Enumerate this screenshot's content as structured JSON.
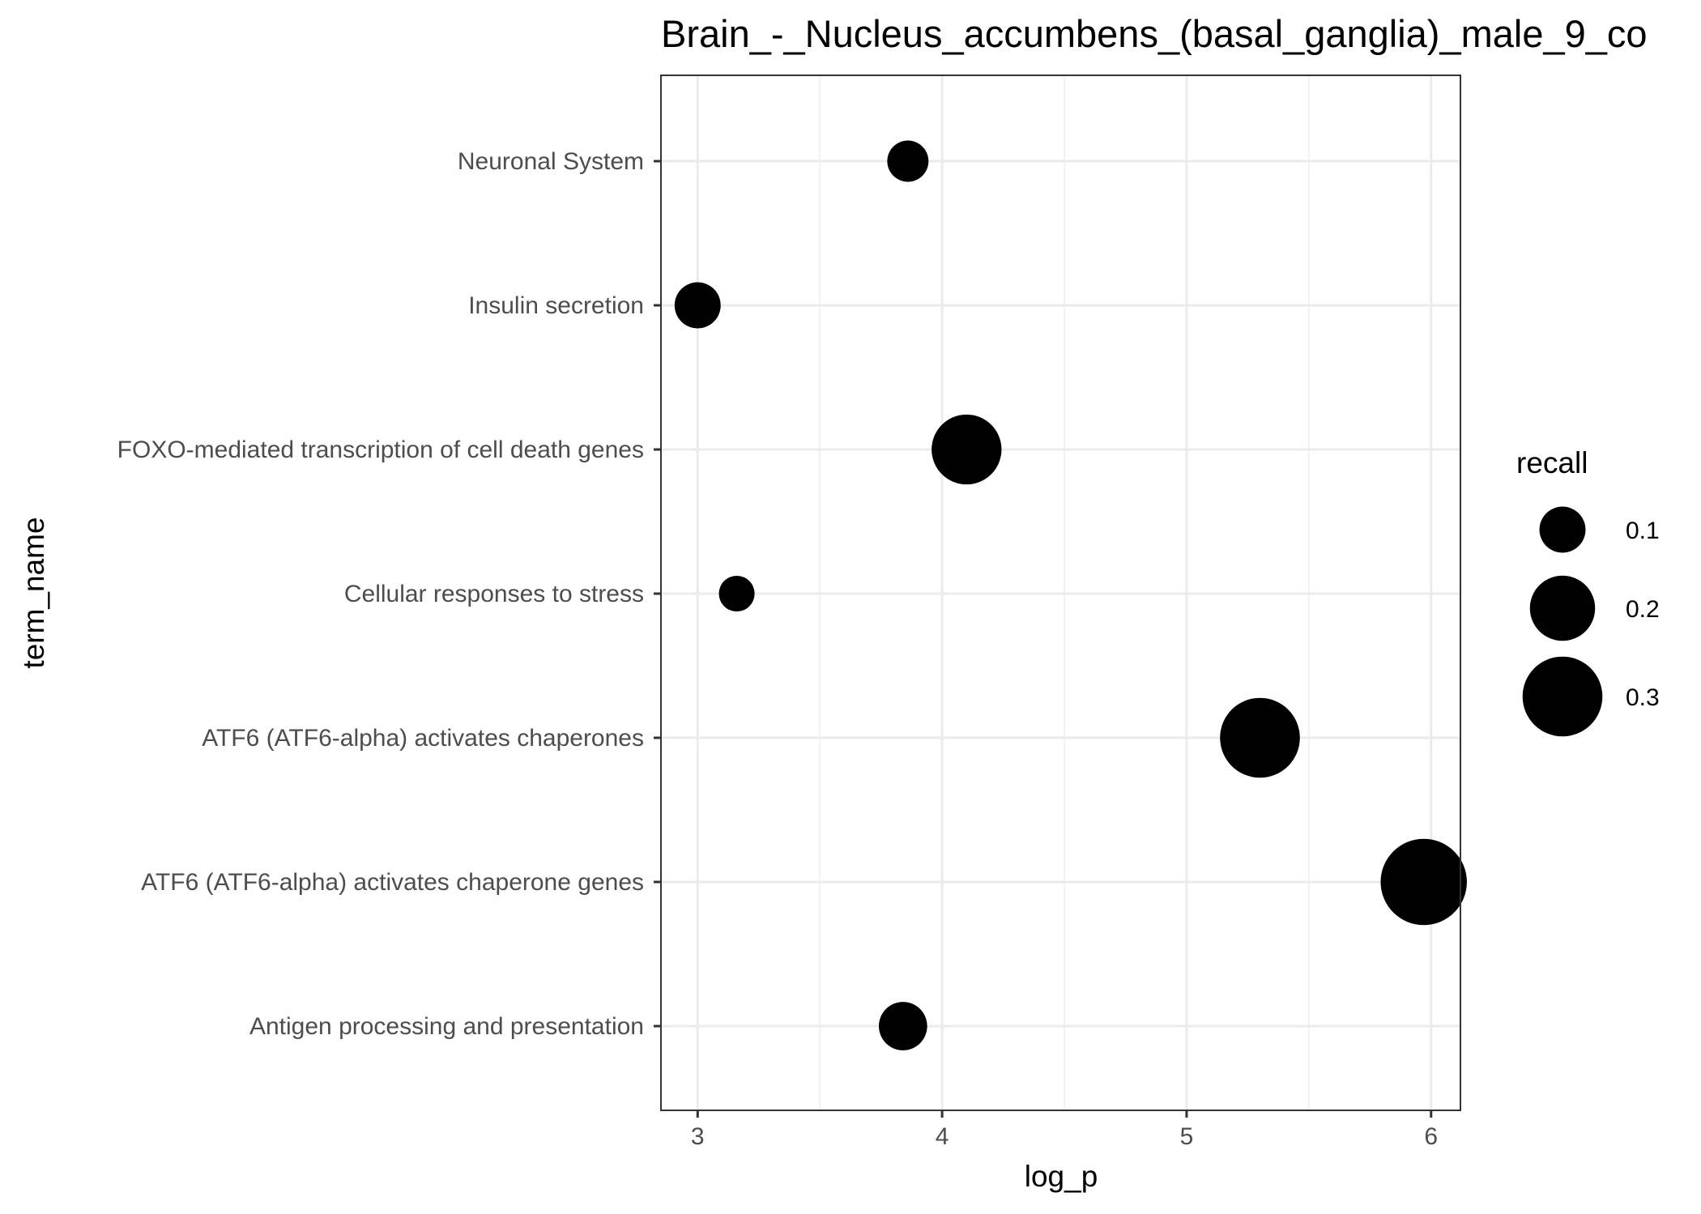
{
  "chart_data": {
    "type": "scatter",
    "title": "Brain_-_Nucleus_accumbens_(basal_ganglia)_male_9_co",
    "xlabel": "log_p",
    "ylabel": "term_name",
    "xlim": [
      2.85,
      6.12
    ],
    "xticks": [
      3,
      4,
      5,
      6
    ],
    "grid": true,
    "categories": [
      "Neuronal System",
      "Insulin secretion",
      "FOXO-mediated transcription of cell death genes",
      "Cellular responses to stress",
      "ATF6 (ATF6-alpha) activates chaperones",
      "ATF6 (ATF6-alpha) activates chaperone genes",
      "Antigen processing and presentation"
    ],
    "points": [
      {
        "term": "Neuronal System",
        "log_p": 3.86,
        "recall": 0.08
      },
      {
        "term": "Insulin secretion",
        "log_p": 3.0,
        "recall": 0.1
      },
      {
        "term": "FOXO-mediated transcription of cell death genes",
        "log_p": 4.1,
        "recall": 0.23
      },
      {
        "term": "Cellular responses to stress",
        "log_p": 3.16,
        "recall": 0.06
      },
      {
        "term": "ATF6 (ATF6-alpha) activates chaperones",
        "log_p": 5.3,
        "recall": 0.3
      },
      {
        "term": "ATF6 (ATF6-alpha) activates chaperone genes",
        "log_p": 5.97,
        "recall": 0.35
      },
      {
        "term": "Antigen processing and presentation",
        "log_p": 3.84,
        "recall": 0.11
      }
    ],
    "legend": {
      "title": "recall",
      "position": "right",
      "entries": [
        {
          "label": "0.1",
          "value": 0.1
        },
        {
          "label": "0.2",
          "value": 0.2
        },
        {
          "label": "0.3",
          "value": 0.3
        }
      ]
    },
    "colors": {
      "point": "#000000",
      "grid_major": "#ebebeb",
      "grid_minor": "#f2f2f2",
      "panel_border": "#333333",
      "tick_text": "#4d4d4d"
    }
  }
}
